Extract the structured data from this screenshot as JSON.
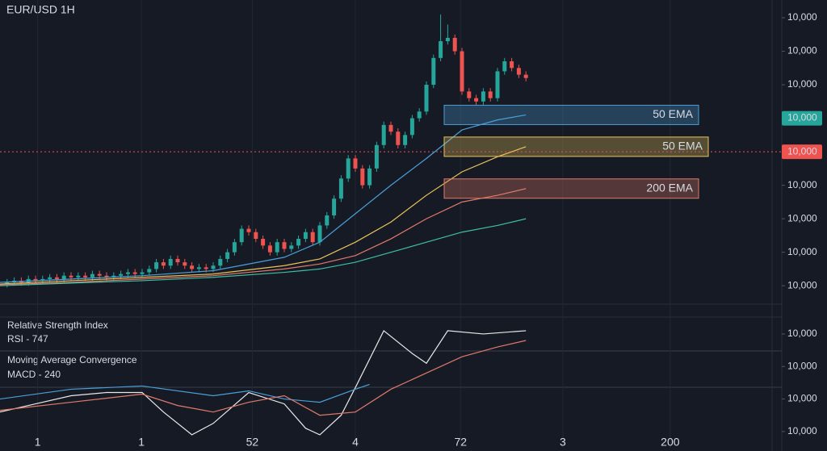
{
  "chart_data": [
    {
      "type": "candlestick",
      "title": "EUR/USD 1H",
      "up_color": "#26a69a",
      "down_color": "#ef5350",
      "xlim": [
        0,
        110
      ],
      "ylim": [
        -5.5,
        85.3
      ],
      "grid": "x",
      "xticks": [
        {
          "value": 5.3,
          "label": "1"
        },
        {
          "value": 19.9,
          "label": "1"
        },
        {
          "value": 35.5,
          "label": "52"
        },
        {
          "value": 50,
          "label": "4"
        },
        {
          "value": 64.8,
          "label": "72"
        },
        {
          "value": 79.2,
          "label": "3"
        },
        {
          "value": 94.3,
          "label": "200"
        }
      ],
      "yticks": [
        {
          "value": 0,
          "label": "10,000"
        },
        {
          "value": 10,
          "label": "10,000"
        },
        {
          "value": 20,
          "label": "10,000"
        },
        {
          "value": 30,
          "label": "10,000"
        },
        {
          "value": 60,
          "label": "10,000"
        },
        {
          "value": 70,
          "label": "10,000"
        },
        {
          "value": 80,
          "label": "10,000"
        }
      ],
      "price_tags": [
        {
          "value": 50,
          "label": "10,000",
          "color": "#26a69a"
        },
        {
          "value": 40,
          "label": "10,000",
          "color": "#ef5350",
          "dashed": true
        }
      ],
      "x": [
        1,
        2,
        3,
        4,
        5,
        6,
        7,
        8,
        9,
        10,
        11,
        12,
        13,
        14,
        15,
        16,
        17,
        18,
        19,
        20,
        21,
        22,
        23,
        24,
        25,
        26,
        27,
        28,
        29,
        30,
        31,
        32,
        33,
        34,
        35,
        36,
        37,
        38,
        39,
        40,
        41,
        42,
        43,
        44,
        45,
        46,
        47,
        48,
        49,
        50,
        51,
        52,
        53,
        54,
        55,
        56,
        57,
        58,
        59,
        60,
        61,
        62,
        63,
        64,
        65,
        66,
        67,
        68,
        69,
        70,
        71,
        72,
        73,
        74
      ],
      "open": [
        0.5,
        1,
        1.5,
        1,
        2,
        1.5,
        2,
        2.5,
        2,
        3,
        2.5,
        3,
        2.5,
        3.5,
        3,
        2.5,
        3,
        3.5,
        4,
        3.5,
        4,
        5,
        7,
        6,
        8,
        7,
        6,
        5,
        5.5,
        5,
        6,
        8,
        10,
        13,
        17,
        16,
        14,
        12,
        10,
        13,
        11,
        12,
        14,
        16,
        13,
        18,
        21,
        26,
        32,
        38,
        35,
        30,
        35,
        42,
        48,
        46,
        42,
        45,
        50,
        52,
        60,
        68,
        73,
        74,
        70,
        58,
        56,
        55,
        58,
        56,
        64,
        67,
        65,
        63
      ],
      "high": [
        2,
        2.5,
        2.5,
        3,
        3,
        3,
        3.5,
        3.5,
        4,
        4,
        4,
        4,
        4.5,
        4.5,
        4,
        4,
        4.5,
        5,
        5,
        5,
        6,
        8,
        8,
        9,
        9,
        8,
        7,
        6.5,
        6.5,
        7,
        9,
        11,
        14,
        18,
        18,
        17,
        15,
        13,
        14,
        14,
        13,
        15,
        17,
        17,
        19,
        22,
        27,
        33,
        39,
        39,
        36,
        36,
        43,
        49,
        49,
        47,
        46,
        51,
        53,
        61,
        69,
        81,
        78,
        75,
        71,
        59,
        57,
        59,
        59,
        65,
        68,
        68,
        66,
        64
      ],
      "low": [
        -0.5,
        0,
        0,
        0,
        0.5,
        0.5,
        1,
        1,
        1,
        1.5,
        1.5,
        1.5,
        1.5,
        2,
        1.5,
        1.5,
        2,
        2.5,
        2.5,
        2.5,
        3,
        4,
        5,
        5,
        6,
        5,
        4,
        4,
        4,
        4,
        5,
        7,
        9,
        12,
        15,
        13,
        11,
        9,
        9,
        10,
        10,
        11,
        13,
        12,
        12,
        17,
        20,
        25,
        31,
        34,
        29,
        29,
        34,
        41,
        45,
        41,
        41,
        44,
        49,
        51,
        59,
        67,
        72,
        69,
        57,
        55,
        54,
        54,
        55,
        55,
        63,
        64,
        62,
        61
      ],
      "close": [
        1,
        1.5,
        1,
        2,
        1.5,
        2,
        2.5,
        2,
        3,
        2.5,
        3,
        2.5,
        3.5,
        3,
        2.5,
        3,
        3.5,
        4,
        3.5,
        4,
        5,
        7,
        6,
        8,
        7,
        6,
        5,
        5.5,
        5,
        6,
        8,
        10,
        13,
        17,
        16,
        14,
        12,
        10,
        13,
        11,
        12,
        14,
        16,
        13,
        18,
        21,
        26,
        32,
        38,
        35,
        30,
        35,
        42,
        48,
        46,
        42,
        45,
        50,
        52,
        60,
        68,
        73,
        74,
        70,
        58,
        56,
        55,
        58,
        56,
        64,
        67,
        65,
        63,
        62
      ],
      "series": [
        {
          "name": "50 EMA",
          "color": "#4a9fd8",
          "x": [
            0,
            10,
            20,
            30,
            40,
            45,
            50,
            55,
            60,
            65,
            70,
            74
          ],
          "values": [
            1,
            2,
            3,
            4.5,
            8.5,
            13,
            21.5,
            30,
            38,
            46.5,
            49.5,
            51
          ]
        },
        {
          "name": "50 EMA",
          "color": "#e8c45a",
          "x": [
            0,
            10,
            20,
            30,
            40,
            45,
            50,
            55,
            60,
            65,
            70,
            74
          ],
          "values": [
            0.5,
            1.5,
            2.5,
            3.5,
            6,
            8,
            13,
            19,
            27,
            34,
            38.5,
            41.5
          ]
        },
        {
          "name": "200 EMA",
          "color": "#e07a6a",
          "x": [
            0,
            10,
            20,
            30,
            40,
            45,
            50,
            55,
            60,
            65,
            70,
            74
          ],
          "values": [
            0.3,
            1,
            2,
            3,
            5,
            6.5,
            9,
            14,
            20,
            25,
            27,
            29
          ]
        },
        {
          "color": "#3fbfa5",
          "x": [
            0,
            10,
            20,
            30,
            40,
            45,
            50,
            55,
            60,
            65,
            70,
            74
          ],
          "values": [
            0,
            0.8,
            1.5,
            2.5,
            4,
            5,
            7,
            10,
            13,
            16,
            18,
            20
          ]
        }
      ]
    },
    {
      "type": "line",
      "title": "Relative Strength Index",
      "subtitle": "RSI - 747",
      "annotations": [
        "Moving Average Convergence",
        "MACD - 240"
      ],
      "xlim": [
        0,
        110
      ],
      "ylim": [
        -0.5,
        3.52
      ],
      "yticks": [
        {
          "value": 0,
          "label": "10,000"
        },
        {
          "value": 1,
          "label": "10,000"
        },
        {
          "value": 2,
          "label": "10,000"
        },
        {
          "value": 3,
          "label": "10,000"
        }
      ],
      "series": [
        {
          "color": "#e8e8e8",
          "x": [
            0,
            5,
            10,
            15,
            20,
            23,
            27,
            30,
            35,
            40,
            43,
            45,
            48,
            50,
            54,
            58,
            60,
            63,
            68,
            74
          ],
          "values": [
            0.6,
            0.85,
            1.1,
            1.2,
            1.2,
            0.6,
            -0.1,
            0.25,
            1.2,
            0.85,
            0.1,
            -0.1,
            0.5,
            1.35,
            3.1,
            2.4,
            2.1,
            3.1,
            3.0,
            3.1
          ]
        },
        {
          "color": "#4a9fd8",
          "x": [
            0,
            10,
            20,
            30,
            35,
            40,
            45,
            50,
            52
          ],
          "values": [
            1.0,
            1.3,
            1.4,
            1.1,
            1.25,
            1.0,
            0.9,
            1.3,
            1.45
          ]
        },
        {
          "color": "#e07a6a",
          "x": [
            0,
            10,
            20,
            25,
            30,
            35,
            40,
            45,
            50,
            55,
            60,
            65,
            70,
            74
          ],
          "values": [
            0.65,
            0.9,
            1.15,
            0.8,
            0.6,
            0.9,
            1.1,
            0.5,
            0.6,
            1.3,
            1.8,
            2.3,
            2.6,
            2.8
          ]
        }
      ]
    }
  ]
}
